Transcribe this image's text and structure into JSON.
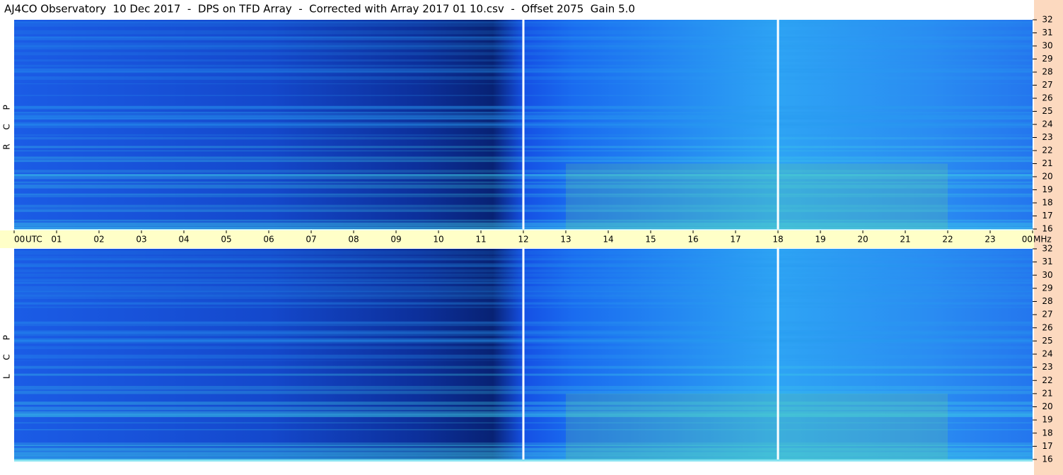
{
  "title": "AJ4CO Observatory  10 Dec 2017  -  DPS on TFD Array  -  Corrected with Array 2017 01 10.csv  -  Offset 2075  Gain 5.0",
  "chart_data": [
    {
      "type": "heatmap",
      "ylabel": "R C P",
      "ylim": [
        16,
        32
      ],
      "yticks": [
        16,
        17,
        18,
        19,
        20,
        21,
        22,
        23,
        24,
        25,
        26,
        27,
        28,
        29,
        30,
        31,
        32
      ],
      "xlim": [
        0,
        24
      ],
      "markers": [
        12,
        18
      ],
      "x_unit": "UTC",
      "y_unit": "MHz",
      "xticks": [
        {
          "value": 0,
          "label": "00"
        },
        {
          "value": 1,
          "label": "01"
        },
        {
          "value": 2,
          "label": "02"
        },
        {
          "value": 3,
          "label": "03"
        },
        {
          "value": 4,
          "label": "04"
        },
        {
          "value": 5,
          "label": "05"
        },
        {
          "value": 6,
          "label": "06"
        },
        {
          "value": 7,
          "label": "07"
        },
        {
          "value": 8,
          "label": "08"
        },
        {
          "value": 9,
          "label": "09"
        },
        {
          "value": 10,
          "label": "10"
        },
        {
          "value": 11,
          "label": "11"
        },
        {
          "value": 12,
          "label": "12"
        },
        {
          "value": 13,
          "label": "13"
        },
        {
          "value": 14,
          "label": "14"
        },
        {
          "value": 15,
          "label": "15"
        },
        {
          "value": 16,
          "label": "16"
        },
        {
          "value": 17,
          "label": "17"
        },
        {
          "value": 18,
          "label": "18"
        },
        {
          "value": 19,
          "label": "19"
        },
        {
          "value": 20,
          "label": "20"
        },
        {
          "value": 21,
          "label": "21"
        },
        {
          "value": 22,
          "label": "22"
        },
        {
          "value": 23,
          "label": "23"
        },
        {
          "value": 24,
          "label": "00"
        }
      ]
    },
    {
      "type": "heatmap",
      "ylabel": "L C P",
      "ylim": [
        16,
        32
      ],
      "yticks": [
        16,
        17,
        18,
        19,
        20,
        21,
        22,
        23,
        24,
        25,
        26,
        27,
        28,
        29,
        30,
        31,
        32
      ],
      "xlim": [
        0,
        24
      ],
      "markers": [
        12,
        18
      ]
    }
  ]
}
